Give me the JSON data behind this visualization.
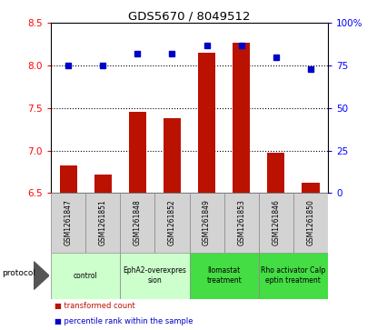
{
  "title": "GDS5670 / 8049512",
  "samples": [
    "GSM1261847",
    "GSM1261851",
    "GSM1261848",
    "GSM1261852",
    "GSM1261849",
    "GSM1261853",
    "GSM1261846",
    "GSM1261850"
  ],
  "bar_values": [
    6.82,
    6.72,
    7.46,
    7.38,
    8.15,
    8.27,
    6.97,
    6.62
  ],
  "dot_values": [
    75,
    75,
    82,
    82,
    87,
    87,
    80,
    73
  ],
  "ylim_left": [
    6.5,
    8.5
  ],
  "ylim_right": [
    0,
    100
  ],
  "yticks_left": [
    6.5,
    7.0,
    7.5,
    8.0,
    8.5
  ],
  "yticks_right": [
    0,
    25,
    50,
    75,
    100
  ],
  "bar_color": "#bb1100",
  "dot_color": "#0000cc",
  "groups": [
    {
      "label": "control",
      "start": 0,
      "end": 2,
      "color": "#ccffcc"
    },
    {
      "label": "EphA2-overexpres\nsion",
      "start": 2,
      "end": 4,
      "color": "#ccffcc"
    },
    {
      "label": "llomastat\ntreatment",
      "start": 4,
      "end": 6,
      "color": "#44dd44"
    },
    {
      "label": "Rho activator Calp\neptin treatment",
      "start": 6,
      "end": 8,
      "color": "#44dd44"
    }
  ],
  "legend_bar_label": "transformed count",
  "legend_dot_label": "percentile rank within the sample",
  "protocol_label": "protocol",
  "sample_box_color": "#d3d3d3",
  "bar_width": 0.5,
  "grid_dotted_values": [
    7.0,
    7.5,
    8.0
  ]
}
